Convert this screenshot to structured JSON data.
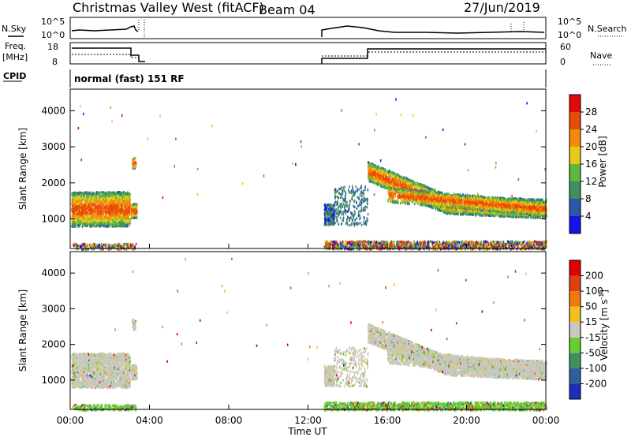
{
  "header": {
    "title": "Christmas Valley West (fitACF)",
    "beam": "Beam 04",
    "date": "27/Jun/2019"
  },
  "noise_panel": {
    "left_label": "N.Sky",
    "right_label": "N.Search",
    "left_ticks": [
      "10^5",
      "10^0"
    ],
    "right_ticks": [
      "10^5",
      "10^0"
    ]
  },
  "freq_panel": {
    "left_label_1": "Freq.",
    "left_label_2": "[MHz]",
    "left_ticks": [
      "18",
      "8"
    ],
    "right_label": "Nave",
    "right_ticks": [
      "60",
      "0"
    ]
  },
  "cpid_panel": {
    "label": "CPID",
    "text": "normal (fast) 151 RF"
  },
  "chart_data": [
    {
      "type": "heatmap",
      "quantity": "Power",
      "ylabel": "Slant Range [km]",
      "ylim": [
        180,
        4600
      ],
      "yticks": [
        "1000",
        "2000",
        "3000",
        "4000"
      ],
      "xlim": [
        0,
        24
      ],
      "colorbar_label": "Power [dB]",
      "colorbar_ticks": [
        "4",
        "8",
        "12",
        "16",
        "20",
        "24",
        "28"
      ],
      "colors": [
        "#1414e6",
        "#2c56a8",
        "#3f8f60",
        "#5db83e",
        "#e8c818",
        "#f08a08",
        "#e84a08",
        "#e00a0a"
      ]
    },
    {
      "type": "heatmap",
      "quantity": "Velocity",
      "ylabel": "Slant Range [km]",
      "ylim": [
        180,
        4600
      ],
      "yticks": [
        "1000",
        "2000",
        "3000",
        "4000"
      ],
      "xlim": [
        0,
        24
      ],
      "xlabel": "Time UT",
      "xticks": [
        "00:00",
        "04:00",
        "08:00",
        "12:00",
        "16:00",
        "20:00",
        "00:00"
      ],
      "colorbar_label": "Velocity [m s",
      "colorbar_label_exp": "-1",
      "colorbar_label_end": "]",
      "colorbar_ticks": [
        "200",
        "100",
        "50",
        "15",
        "-15",
        "-50",
        "-100",
        "-200"
      ],
      "colors": [
        "#1f2db8",
        "#2f5f9a",
        "#3f8f5f",
        "#66cc33",
        "#c8c8c0",
        "#f0c020",
        "#f07a10",
        "#e04010",
        "#e00000"
      ]
    }
  ]
}
